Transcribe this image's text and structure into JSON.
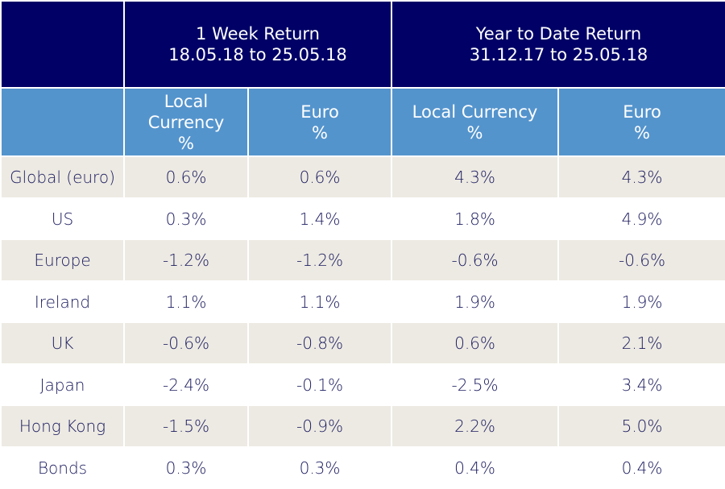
{
  "chart_data": {
    "type": "table",
    "groups": [
      {
        "title": "1 Week Return",
        "period": "18.05.18 to 25.05.18"
      },
      {
        "title": "Year to Date Return",
        "period": "31.12.17 to 25.05.18"
      }
    ],
    "subheaders": [
      [
        "Local",
        "Currency",
        "%"
      ],
      [
        "Euro",
        "%"
      ],
      [
        "Local Currency",
        "%"
      ],
      [
        "Euro",
        "%"
      ]
    ],
    "rows": [
      {
        "region": "Global (euro)",
        "values": [
          "0.6%",
          "0.6%",
          "4.3%",
          "4.3%"
        ]
      },
      {
        "region": "US",
        "values": [
          "0.3%",
          "1.4%",
          "1.8%",
          "4.9%"
        ]
      },
      {
        "region": "Europe",
        "values": [
          "-1.2%",
          "-1.2%",
          "-0.6%",
          "-0.6%"
        ]
      },
      {
        "region": "Ireland",
        "values": [
          "1.1%",
          "1.1%",
          "1.9%",
          "1.9%"
        ]
      },
      {
        "region": "UK",
        "values": [
          "-0.6%",
          "-0.8%",
          "0.6%",
          "2.1%"
        ]
      },
      {
        "region": "Japan",
        "values": [
          "-2.4%",
          "-0.1%",
          "-2.5%",
          "3.4%"
        ]
      },
      {
        "region": "Hong Kong",
        "values": [
          "-1.5%",
          "-0.9%",
          "2.2%",
          "5.0%"
        ]
      },
      {
        "region": "Bonds",
        "values": [
          "0.3%",
          "0.3%",
          "0.4%",
          "0.4%"
        ]
      }
    ]
  },
  "colors": {
    "group_header_bg": "#000066",
    "sub_header_bg": "#5494cd",
    "shaded_row_bg": "#edeae3",
    "text": "#1a1a5e"
  }
}
